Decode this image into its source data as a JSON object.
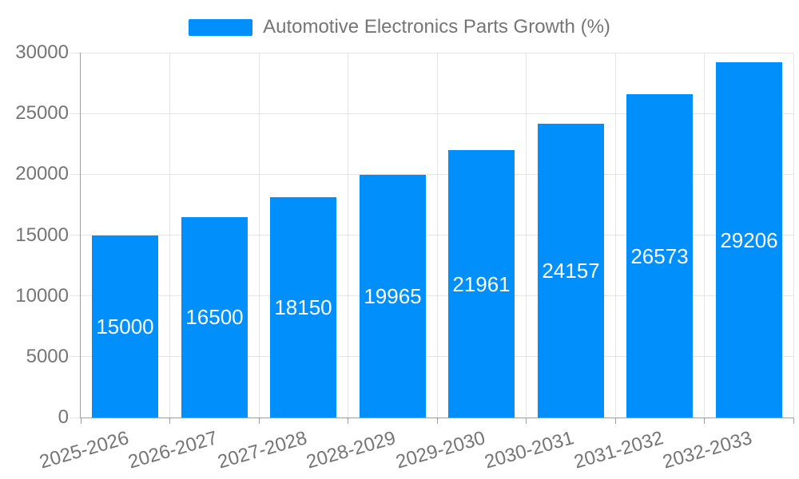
{
  "chart_data": {
    "type": "bar",
    "title": "Automotive Electronics Parts Growth (%)",
    "legend_position": "top",
    "categories": [
      "2025-2026",
      "2026-2027",
      "2027-2028",
      "2028-2029",
      "2029-2030",
      "2030-2031",
      "2031-2032",
      "2032-2033"
    ],
    "values": [
      15000,
      16500,
      18150,
      19965,
      21961,
      24157,
      26573,
      29206
    ],
    "yticks": [
      0,
      5000,
      10000,
      15000,
      20000,
      25000,
      30000
    ],
    "ylim": [
      0,
      30000
    ],
    "xlabel": "",
    "ylabel": "",
    "grid": "on",
    "colors": {
      "bar": "#008FFB",
      "value_label": "#ffffff",
      "axis_text": "#757575",
      "legend_text": "#757575",
      "gridline": "#e4e4e4",
      "axis_line": "#9e9e9e",
      "background": "#ffffff"
    }
  }
}
